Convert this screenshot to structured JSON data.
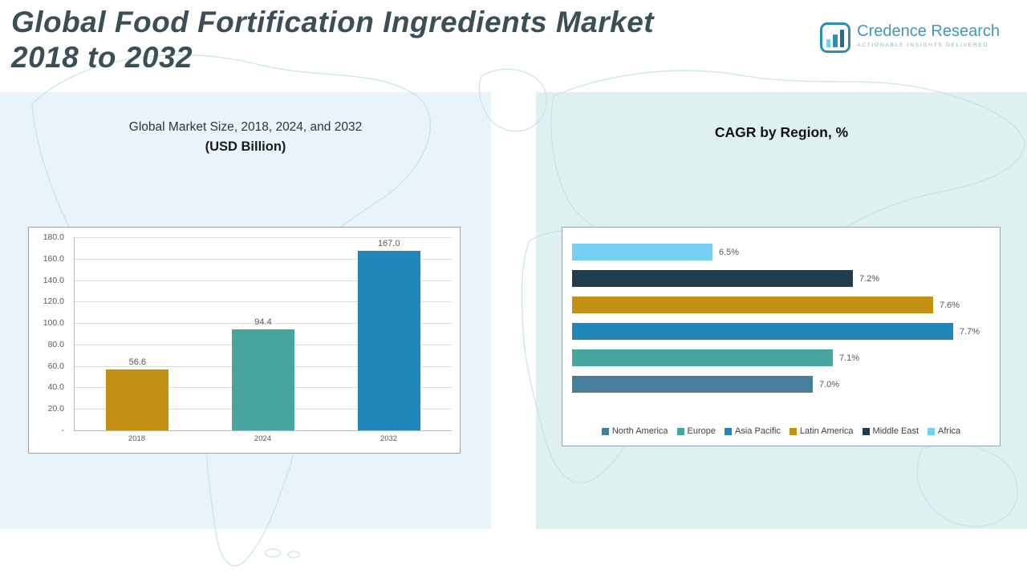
{
  "header": {
    "title_line1": "Global Food Fortification Ingredients Market",
    "title_line2": "2018 to 2032",
    "logo": {
      "name": "Credence Research",
      "tagline": "Actionable Insights Delivered",
      "brand_color": "#2e8fae"
    }
  },
  "chart_data": [
    {
      "type": "bar",
      "title": "Global Market Size, 2018, 2024, and 2032",
      "subtitle": "(USD Billion)",
      "categories": [
        "2018",
        "2024",
        "2032"
      ],
      "values": [
        56.6,
        94.4,
        167.0
      ],
      "value_labels": [
        "56.6",
        "94.4",
        "167.0"
      ],
      "bar_colors": [
        "#c29114",
        "#46a59d",
        "#2187b8"
      ],
      "xlabel": "",
      "ylabel": "",
      "ylim": [
        0,
        180
      ],
      "ytick_step": 20,
      "ytick_labels": [
        "180.0",
        "160.0",
        "140.0",
        "120.0",
        "100.0",
        "80.0",
        "60.0",
        "40.0",
        "20.0",
        "-"
      ],
      "grid": true,
      "legend_position": "none"
    },
    {
      "type": "bar-horizontal",
      "title": "CAGR by Region, %",
      "categories_top_to_bottom": [
        "Africa",
        "Middle East",
        "Latin America",
        "Asia Pacific",
        "Europe",
        "North America"
      ],
      "values": [
        6.5,
        7.2,
        7.6,
        7.7,
        7.1,
        7.0
      ],
      "value_labels": [
        "6.5%",
        "7.2%",
        "7.6%",
        "7.7%",
        "7.1%",
        "7.0%"
      ],
      "bar_colors": [
        "#76d0f4",
        "#203d4e",
        "#c29114",
        "#2187b8",
        "#46a59d",
        "#487e99"
      ],
      "xlim": [
        5.8,
        7.8
      ],
      "grid": false,
      "legend_position": "bottom",
      "legend": [
        {
          "label": "North America",
          "color": "#487e99"
        },
        {
          "label": "Europe",
          "color": "#46a59d"
        },
        {
          "label": "Asia Pacific",
          "color": "#2187b8"
        },
        {
          "label": "Latin America",
          "color": "#c29114"
        },
        {
          "label": "Middle East",
          "color": "#203d4e"
        },
        {
          "label": "Africa",
          "color": "#76d0f4"
        }
      ]
    }
  ]
}
